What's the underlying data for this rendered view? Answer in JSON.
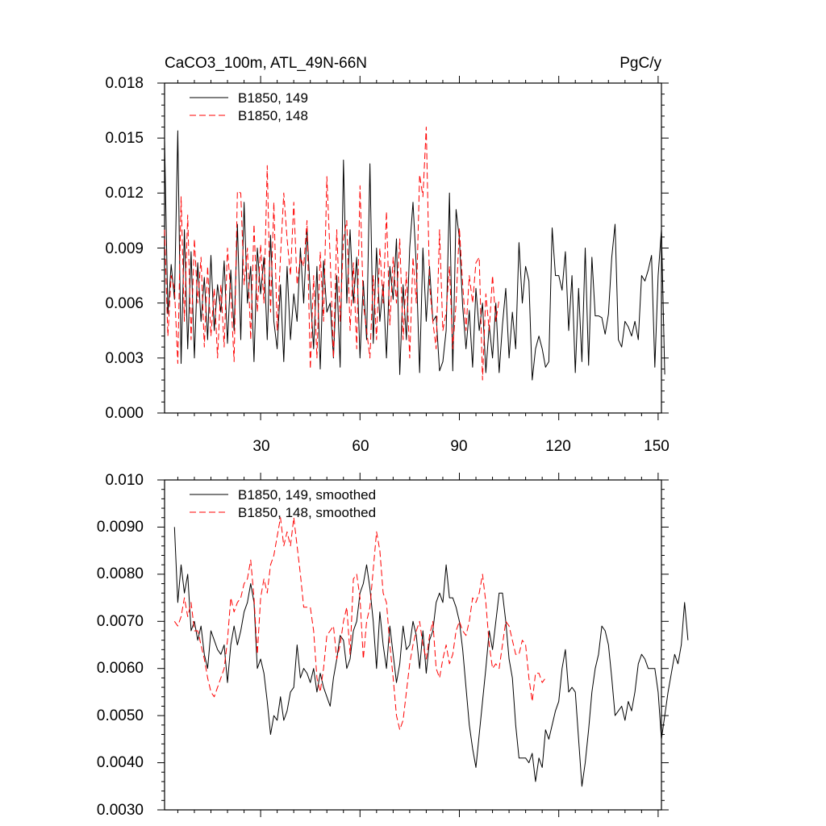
{
  "chart_data": [
    {
      "type": "line",
      "title": "CaCO3_100m, ATL_49N-66N",
      "units_label": "PgC/y",
      "xlim": [
        1,
        151
      ],
      "ylim": [
        0,
        0.018
      ],
      "x_ticks": [
        30,
        60,
        90,
        120,
        150
      ],
      "x_tick_labels": [
        "30",
        "60",
        "90",
        "120",
        "150"
      ],
      "y_ticks": [
        0,
        0.003,
        0.006,
        0.009,
        0.012,
        0.015,
        0.018
      ],
      "y_tick_labels": [
        "0.000",
        "0.003",
        "0.006",
        "0.009",
        "0.012",
        "0.015",
        "0.018"
      ],
      "legend_position": "top-left",
      "series": [
        {
          "name": "B1850, 149",
          "color": "#000000",
          "dash": "solid",
          "x_start": 1,
          "values": [
            0.0149,
            0.0054,
            0.0081,
            0.0062,
            0.0154,
            0.0027,
            0.01,
            0.0035,
            0.0088,
            0.003,
            0.0082,
            0.005,
            0.0074,
            0.004,
            0.0086,
            0.0045,
            0.007,
            0.0055,
            0.0083,
            0.0038,
            0.0078,
            0.0045,
            0.0103,
            0.004,
            0.0115,
            0.006,
            0.008,
            0.0028,
            0.009,
            0.0065,
            0.0085,
            0.004,
            0.0097,
            0.005,
            0.0035,
            0.007,
            0.0028,
            0.008,
            0.004,
            0.0065,
            0.005,
            0.009,
            0.006,
            0.01,
            0.0065,
            0.0035,
            0.008,
            0.0024,
            0.0083,
            0.0055,
            0.006,
            0.003,
            0.0075,
            0.0025,
            0.0138,
            0.006,
            0.01,
            0.006,
            0.0085,
            0.003,
            0.0072,
            0.004,
            0.0136,
            0.0038,
            0.009,
            0.005,
            0.007,
            0.003,
            0.008,
            0.0062,
            0.0095,
            0.0021,
            0.007,
            0.004,
            0.009,
            0.0115,
            0.008,
            0.0022,
            0.009,
            0.005,
            0.008,
            0.005,
            0.0053,
            0.0023,
            0.0028,
            0.0045,
            0.012,
            0.0023,
            0.0111,
            0.0095,
            0.0058,
            0.0035,
            0.0056,
            0.0025,
            0.0068,
            0.0045,
            0.006,
            0.0022,
            0.0048,
            0.003,
            0.006,
            0.0022,
            0.0048,
            0.0068,
            0.003,
            0.0055,
            0.0035,
            0.0093,
            0.006,
            0.008,
            0.0072,
            0.0018,
            0.0035,
            0.0042,
            0.0035,
            0.0025,
            0.0028,
            0.0101,
            0.0075,
            0.0075,
            0.0067,
            0.0088,
            0.0045,
            0.0075,
            0.0022,
            0.0068,
            0.0028,
            0.009,
            0.0026,
            0.0085,
            0.0053,
            0.0053,
            0.0052,
            0.0043,
            0.0054,
            0.0085,
            0.0103,
            0.004,
            0.0036,
            0.005,
            0.0047,
            0.0042,
            0.005,
            0.004,
            0.0075,
            0.0072,
            0.0078,
            0.0086,
            0.0025,
            0.0075,
            0.01,
            0.0021
          ]
        },
        {
          "name": "B1850, 148",
          "color": "#ff0000",
          "dash": "dashed",
          "x_start": 1,
          "values": [
            0.01,
            0.0042,
            0.0075,
            0.0068,
            0.0027,
            0.0118,
            0.005,
            0.0108,
            0.004,
            0.0095,
            0.006,
            0.0085,
            0.0036,
            0.008,
            0.0042,
            0.0068,
            0.003,
            0.007,
            0.0036,
            0.009,
            0.0065,
            0.0028,
            0.0121,
            0.012,
            0.007,
            0.009,
            0.004,
            0.0103,
            0.0055,
            0.0092,
            0.006,
            0.0135,
            0.0055,
            0.0115,
            0.0045,
            0.0085,
            0.012,
            0.0095,
            0.0075,
            0.0115,
            0.007,
            0.0085,
            0.008,
            0.0105,
            0.0024,
            0.0075,
            0.003,
            0.0088,
            0.005,
            0.0129,
            0.0085,
            0.003,
            0.01,
            0.005,
            0.0095,
            0.0105,
            0.0045,
            0.0082,
            0.0035,
            0.0124,
            0.006,
            0.0045,
            0.003,
            0.0075,
            0.004,
            0.009,
            0.006,
            0.011,
            0.0048,
            0.0085,
            0.006,
            0.0095,
            0.004,
            0.0077,
            0.003,
            0.0085,
            0.006,
            0.013,
            0.0118,
            0.0156,
            0.007,
            0.005,
            0.0035,
            0.01,
            0.0045,
            0.0055,
            0.008,
            0.0035,
            0.006,
            0.0101,
            0.007,
            0.0045,
            0.0075,
            0.006,
            0.0082,
            0.0085,
            0.0018,
            0.0065,
            0.0045,
            0.0075,
            0.005,
            0.0062
          ]
        }
      ]
    },
    {
      "type": "line",
      "xlim": [
        1,
        151
      ],
      "ylim": [
        0.003,
        0.01
      ],
      "x_ticks": [
        30,
        60,
        90,
        120,
        150
      ],
      "y_ticks": [
        0.003,
        0.004,
        0.005,
        0.006,
        0.007,
        0.008,
        0.009,
        0.01
      ],
      "y_tick_labels": [
        "0.0030",
        "0.0040",
        "0.0050",
        "0.0060",
        "0.0070",
        "0.0080",
        "0.0090",
        "0.010"
      ],
      "legend_position": "top-left",
      "series": [
        {
          "name": "B1850, 149, smoothed",
          "color": "#000000",
          "dash": "solid",
          "x_start": 4,
          "values": [
            0.009,
            0.0074,
            0.0082,
            0.0076,
            0.008,
            0.0068,
            0.007,
            0.0066,
            0.0069,
            0.0063,
            0.006,
            0.0068,
            0.0066,
            0.0064,
            0.0063,
            0.0065,
            0.0057,
            0.0065,
            0.0069,
            0.0065,
            0.0068,
            0.0072,
            0.0074,
            0.0078,
            0.0074,
            0.006,
            0.0062,
            0.0059,
            0.0053,
            0.0046,
            0.005,
            0.0049,
            0.0054,
            0.0049,
            0.0051,
            0.0055,
            0.0056,
            0.0065,
            0.0058,
            0.006,
            0.0059,
            0.0057,
            0.006,
            0.0055,
            0.0059,
            0.0056,
            0.0054,
            0.0052,
            0.0058,
            0.0062,
            0.0067,
            0.0066,
            0.006,
            0.0062,
            0.0068,
            0.007,
            0.0076,
            0.0078,
            0.0082,
            0.0077,
            0.007,
            0.006,
            0.0072,
            0.0065,
            0.006,
            0.0069,
            0.0063,
            0.0057,
            0.0061,
            0.0069,
            0.0064,
            0.0065,
            0.007,
            0.0067,
            0.006,
            0.0068,
            0.0059,
            0.0066,
            0.0068,
            0.0074,
            0.0076,
            0.0074,
            0.0082,
            0.0075,
            0.0075,
            0.0073,
            0.007,
            0.0064,
            0.0056,
            0.0048,
            0.0043,
            0.0039,
            0.0046,
            0.0053,
            0.006,
            0.0068,
            0.0064,
            0.007,
            0.0076,
            0.0076,
            0.007,
            0.0062,
            0.0058,
            0.0048,
            0.0041,
            0.0041,
            0.0041,
            0.004,
            0.0042,
            0.0036,
            0.0041,
            0.0039,
            0.0047,
            0.0045,
            0.0048,
            0.0051,
            0.0053,
            0.006,
            0.0064,
            0.0055,
            0.0056,
            0.0055,
            0.0045,
            0.0035,
            0.004,
            0.0047,
            0.0055,
            0.006,
            0.0063,
            0.0069,
            0.0068,
            0.0065,
            0.0058,
            0.005,
            0.0051,
            0.0052,
            0.0049,
            0.0053,
            0.0051,
            0.0055,
            0.0061,
            0.0063,
            0.0062,
            0.006,
            0.006,
            0.006,
            0.0055,
            0.0045,
            0.005,
            0.0055,
            0.0059,
            0.0063,
            0.0061,
            0.0065,
            0.0074,
            0.0066
          ]
        },
        {
          "name": "B1850, 148, smoothed",
          "color": "#ff0000",
          "dash": "dashed",
          "x_start": 4,
          "values": [
            0.007,
            0.0069,
            0.0071,
            0.0075,
            0.0071,
            0.0074,
            0.0068,
            0.0068,
            0.0065,
            0.0062,
            0.0058,
            0.0055,
            0.0054,
            0.0056,
            0.0058,
            0.006,
            0.0066,
            0.0075,
            0.0072,
            0.0074,
            0.0075,
            0.0078,
            0.0079,
            0.0083,
            0.0075,
            0.0063,
            0.0075,
            0.0079,
            0.0076,
            0.0082,
            0.0084,
            0.0088,
            0.0092,
            0.0086,
            0.0089,
            0.0086,
            0.0092,
            0.0086,
            0.008,
            0.0073,
            0.0073,
            0.0073,
            0.0068,
            0.0058,
            0.0055,
            0.006,
            0.0067,
            0.0068,
            0.0069,
            0.0062,
            0.0065,
            0.007,
            0.0073,
            0.0063,
            0.0079,
            0.008,
            0.0075,
            0.0062,
            0.007,
            0.0073,
            0.0081,
            0.0089,
            0.0085,
            0.0076,
            0.0074,
            0.0065,
            0.0058,
            0.005,
            0.0047,
            0.0049,
            0.0055,
            0.0061,
            0.0065,
            0.0068,
            0.007,
            0.0065,
            0.0062,
            0.0067,
            0.007,
            0.006,
            0.0058,
            0.0062,
            0.0065,
            0.0061,
            0.0063,
            0.0068,
            0.007,
            0.0068,
            0.0067,
            0.007,
            0.0075,
            0.0074,
            0.0076,
            0.008,
            0.0074,
            0.0065,
            0.006,
            0.0061,
            0.006,
            0.0065,
            0.007,
            0.0069,
            0.0066,
            0.0063,
            0.0063,
            0.0066,
            0.0065,
            0.0058,
            0.0053,
            0.0059,
            0.0059,
            0.0057,
            0.0058
          ]
        }
      ]
    }
  ]
}
